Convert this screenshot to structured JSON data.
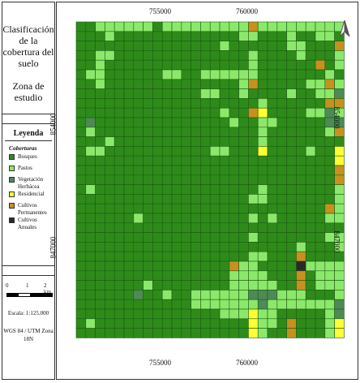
{
  "title": "Clasificación de la cobertura del suelo",
  "subtitle": "Zona de estudio",
  "legend": {
    "heading": "Leyenda",
    "subheading": "Coberturas",
    "items": [
      {
        "label": "Bosques",
        "color": "#2e8b1a"
      },
      {
        "label": "Pastos",
        "color": "#8ce86a"
      },
      {
        "label": "Vegetación Herbácea",
        "color": "#4e8a57"
      },
      {
        "label": "Residencial",
        "color": "#ffff33"
      },
      {
        "label": "Cultivos Permanentes",
        "color": "#c8901e"
      },
      {
        "label": "Cultivos Anuales",
        "color": "#2a2a2a"
      }
    ]
  },
  "scale": {
    "ticks": [
      "0",
      "1",
      "2 km"
    ]
  },
  "scale_text": "Escala: 1:125.000",
  "crs": "WGS 84 / UTM Zona 18N",
  "coords": {
    "x_top": [
      "755000",
      "760000"
    ],
    "x_bottom": [
      "755000",
      "760000"
    ],
    "y_left": [
      "854000",
      "847000"
    ],
    "y_right": [
      "854000",
      "847000"
    ]
  },
  "grid": {
    "legend_codes": "B=Bosques, P=Pastos, H=Vegetación Herbácea, R=Residencial, C=Cultivos Permanentes, A=Cultivos Anuales",
    "rows": [
      "BBPPPPPPBPPPPPPPPPCPPPPPPPPP",
      "BBBPBBBBBBBBBBBBBPPBBBPBBPPB",
      "BBBBBBBBBBBBBBBPBBBBBBPPBBBC",
      "BBPPBBBBBBBBBBBBBBPBBBBPBBBP",
      "BBPBBBBBBBBBBBBBBBPBBBBBBCBP",
      "BPPBBBBBBPPBBPPPPPPBBBBBBBPB",
      "BBPBBBBBBBBBBBBBBPCBBBBBPPCP",
      "BBBBBBBBBBBBBPPBBPBBBBPBBPPH",
      "BBBBBBBBBBBBBBBBBBBPBBBBBBCC",
      "BBBBBBBBBBBBBBBPBBCRBBBBPPHP",
      "BHBBBBBBBBBBBBBBPBBPPBBBBBHH",
      "BPBBBBBBBBBBBBBBBBBPBBBBBBPC",
      "BBBPBBBBBBBBBBBBBBBPBBBBBBBB",
      "BPPBBBBBBBBBBBPPBBBRBBBBPBBR",
      "BBBBBBBBBBBBBBBBBBBBBBBBBBBR",
      "BBBBBBBBBBBBBBBBBBBBBBBBBBBC",
      "BBBBBBBBBBBBBBBBBBBBBBBBBBBC",
      "BPBBBBBBBBBBBBBBBBBPBBBBBBBP",
      "BBBBBBBBBBBBBBBBBBPPBBBBBBBP",
      "BBBBBBBBBBBBBBBBBBBBBBBBBBCP",
      "BBBBBBPBBBBBBBBBBBPBPBBBBBPP",
      "BBBBBBBBBBBBBBBBBBBBBBBBBBBB",
      "BBBBBBBBBBBBBBBBBBPBBBBBBBPP",
      "BBBBBBBBBBBBBBBBBBBBBBBPBBBP",
      "BBBBBBBBBBBBBBBBBBPPBBBCBBBB",
      "BBBBBBBBBBBBBBBBCPPBBBBAPPPP",
      "BBBBBBBBBBBBBBBBPPPPBBBCBPPP",
      "BBBBBBBPBBBBBBBBPPPPPBBCBPPP",
      "BBBBBBHBBPBBPPPPPPHHHPPPBBBP",
      "BBBBBBBBBBBBPPPPPPPHPPPPPPPH",
      "BBBBBBBBBBBBBBBPPPRPPBBBBBPH",
      "BPBBBBBBBBBBBBBBBBRPPBCBBBPR",
      "BBBBBBBBBBBBBBBBBBRPBBCBBBPR"
    ]
  }
}
